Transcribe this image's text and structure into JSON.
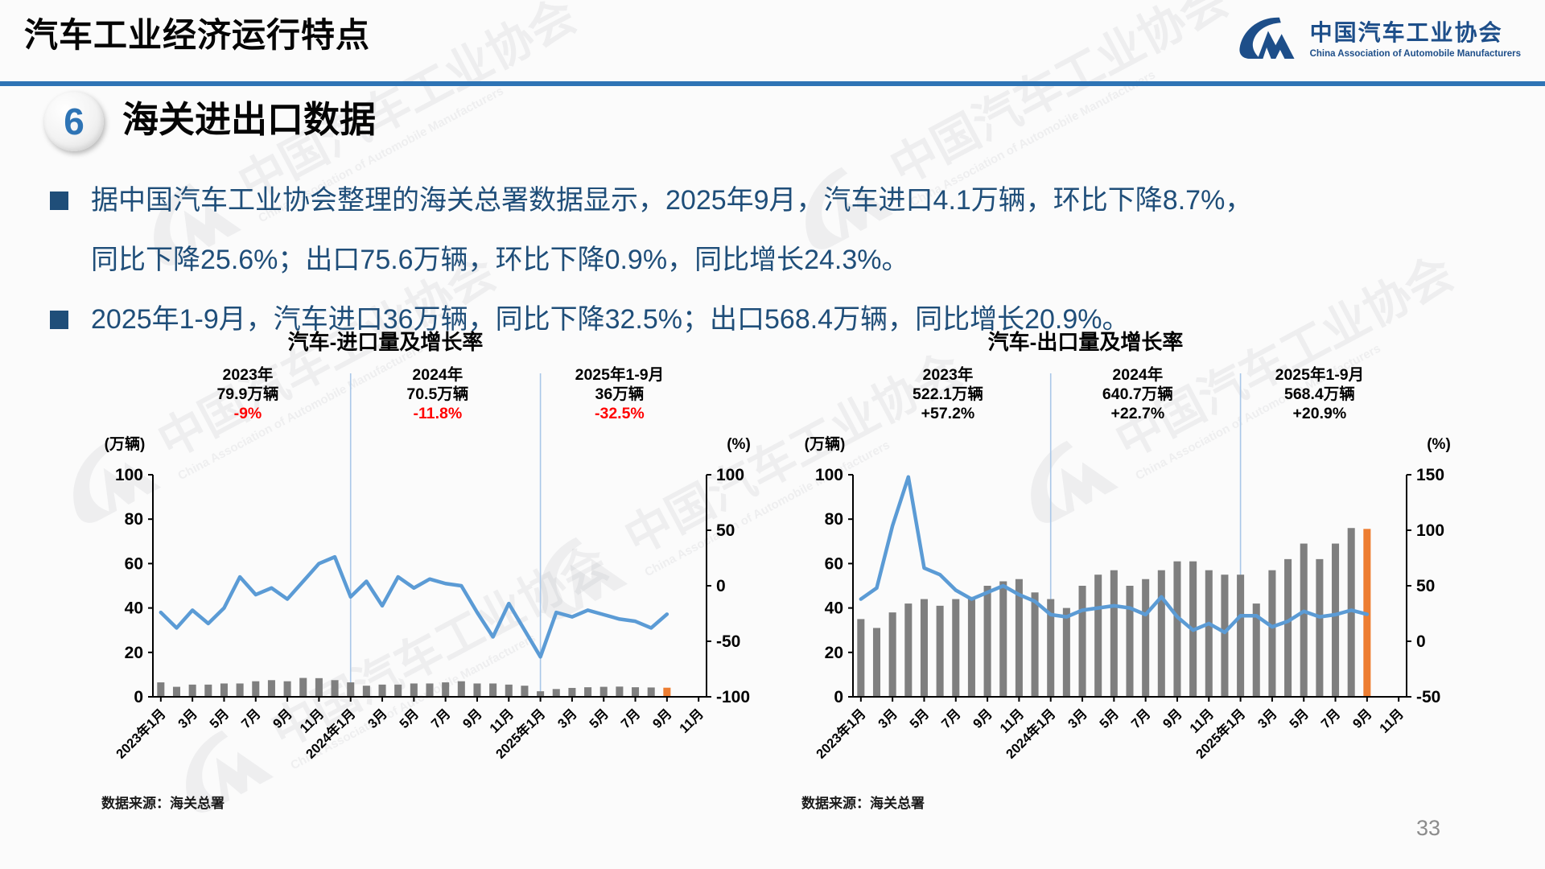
{
  "header": {
    "title": "汽车工业经济运行特点",
    "logo_zh": "中国汽车工业协会",
    "logo_en": "China Association of Automobile Manufacturers"
  },
  "section": {
    "number": "6",
    "title": "海关进出口数据"
  },
  "bullets": [
    "据中国汽车工业协会整理的海关总署数据显示，2025年9月，汽车进口4.1万辆，环比下降8.7%，同比下降25.6%；出口75.6万辆，环比下降0.9%，同比增长24.3%。",
    "2025年1-9月，汽车进口36万辆，同比下降32.5%；出口568.4万辆，同比增长20.9%。"
  ],
  "watermark": {
    "zh": "中国汽车工业协会",
    "en": "China Association of Automobile Manufacturers"
  },
  "footer": {
    "page_number": "33"
  },
  "colors": {
    "header_rule": "#2e74b5",
    "body_text": "#1f4e79",
    "bar_gray": "#7f7f7f",
    "bar_highlight": "#ed7d31",
    "line_blue": "#5b9bd5",
    "divider_blue": "#a9c7e8",
    "negative_red": "#ff0000",
    "logo_blue": "#1d4e89"
  },
  "chart_data": [
    {
      "type": "combo-bar-line",
      "title": "汽车-进口量及增长率",
      "source": "数据来源：海关总署",
      "left_axis": {
        "label": "(万辆)",
        "range": [
          0,
          100
        ],
        "ticks": [
          0,
          20,
          40,
          60,
          80,
          100
        ]
      },
      "right_axis": {
        "label": "(%)",
        "range": [
          -100,
          100
        ],
        "ticks": [
          -100,
          -50,
          0,
          50,
          100
        ]
      },
      "months_total": 35,
      "months": [
        "2023-01",
        "2023-02",
        "2023-03",
        "2023-04",
        "2023-05",
        "2023-06",
        "2023-07",
        "2023-08",
        "2023-09",
        "2023-10",
        "2023-11",
        "2023-12",
        "2024-01",
        "2024-02",
        "2024-03",
        "2024-04",
        "2024-05",
        "2024-06",
        "2024-07",
        "2024-08",
        "2024-09",
        "2024-10",
        "2024-11",
        "2024-12",
        "2025-01",
        "2025-02",
        "2025-03",
        "2025-04",
        "2025-05",
        "2025-06",
        "2025-07",
        "2025-08",
        "2025-09"
      ],
      "x_tick_labels": [
        "2023年1月",
        "3月",
        "5月",
        "7月",
        "9月",
        "11月",
        "2024年1月",
        "3月",
        "5月",
        "7月",
        "9月",
        "11月",
        "2025年1月",
        "3月",
        "5月",
        "7月",
        "9月",
        "11月"
      ],
      "bar_series": {
        "name": "进口量(万辆)",
        "color": "#7f7f7f",
        "last_color": "#ed7d31",
        "values": [
          6.5,
          4.5,
          5.5,
          5.5,
          6.0,
          6.0,
          7.0,
          7.5,
          7.0,
          8.5,
          8.4,
          7.5,
          6.5,
          5.0,
          5.5,
          5.5,
          6.0,
          6.0,
          6.5,
          7.0,
          6.0,
          6.0,
          5.5,
          5.0,
          2.5,
          3.5,
          4.0,
          4.3,
          4.5,
          4.6,
          4.3,
          4.2,
          4.1
        ]
      },
      "line_series": {
        "name": "增长率(%)",
        "color": "#5b9bd5",
        "values_pct": [
          -24,
          -38,
          -22,
          -34,
          -20,
          8,
          -8,
          -2,
          -12,
          4,
          20,
          26,
          -10,
          4,
          -18,
          8,
          -2,
          6,
          2,
          0,
          -24,
          -46,
          -16,
          -40,
          -64,
          -24,
          -28,
          -22,
          -26,
          -30,
          -32,
          -38,
          -25.6
        ]
      },
      "dividers_at": [
        12,
        24
      ],
      "annotation_pct_color": "#ff0000",
      "annotations": [
        {
          "lines": [
            "2023年",
            "79.9万辆",
            "-9%"
          ]
        },
        {
          "lines": [
            "2024年",
            "70.5万辆",
            "-11.8%"
          ]
        },
        {
          "lines": [
            "2025年1-9月",
            "36万辆",
            "-32.5%"
          ]
        }
      ]
    },
    {
      "type": "combo-bar-line",
      "title": "汽车-出口量及增长率",
      "source": "数据来源：海关总署",
      "left_axis": {
        "label": "(万辆)",
        "range": [
          0,
          100
        ],
        "ticks": [
          0,
          20,
          40,
          60,
          80,
          100
        ]
      },
      "right_axis": {
        "label": "(%)",
        "range": [
          -50,
          150
        ],
        "ticks": [
          -50,
          0,
          50,
          100,
          150
        ]
      },
      "months_total": 35,
      "months": [
        "2023-01",
        "2023-02",
        "2023-03",
        "2023-04",
        "2023-05",
        "2023-06",
        "2023-07",
        "2023-08",
        "2023-09",
        "2023-10",
        "2023-11",
        "2023-12",
        "2024-01",
        "2024-02",
        "2024-03",
        "2024-04",
        "2024-05",
        "2024-06",
        "2024-07",
        "2024-08",
        "2024-09",
        "2024-10",
        "2024-11",
        "2024-12",
        "2025-01",
        "2025-02",
        "2025-03",
        "2025-04",
        "2025-05",
        "2025-06",
        "2025-07",
        "2025-08",
        "2025-09"
      ],
      "x_tick_labels": [
        "2023年1月",
        "3月",
        "5月",
        "7月",
        "9月",
        "11月",
        "2024年1月",
        "3月",
        "5月",
        "7月",
        "9月",
        "11月",
        "2025年1月",
        "3月",
        "5月",
        "7月",
        "9月",
        "11月"
      ],
      "bar_series": {
        "name": "出口量(万辆)",
        "color": "#7f7f7f",
        "last_color": "#ed7d31",
        "values": [
          35,
          31,
          38,
          42,
          44,
          41,
          44,
          45,
          50,
          52,
          53,
          47,
          44,
          40,
          50,
          55,
          57,
          50,
          53,
          57,
          61,
          61,
          57,
          55,
          55,
          42,
          57,
          62,
          69,
          62,
          69,
          76,
          75.6
        ]
      },
      "line_series": {
        "name": "增长率(%)",
        "color": "#5b9bd5",
        "values_pct": [
          38,
          48,
          104,
          148,
          66,
          60,
          46,
          38,
          44,
          50,
          42,
          36,
          24,
          22,
          28,
          30,
          32,
          30,
          24,
          40,
          22,
          10,
          16,
          8,
          23,
          23,
          13,
          18,
          27,
          22,
          24,
          28,
          24.3
        ]
      },
      "dividers_at": [
        12,
        24
      ],
      "annotation_pct_color": "#000000",
      "annotations": [
        {
          "lines": [
            "2023年",
            "522.1万辆",
            "+57.2%"
          ]
        },
        {
          "lines": [
            "2024年",
            "640.7万辆",
            "+22.7%"
          ]
        },
        {
          "lines": [
            "2025年1-9月",
            "568.4万辆",
            "+20.9%"
          ]
        }
      ]
    }
  ]
}
